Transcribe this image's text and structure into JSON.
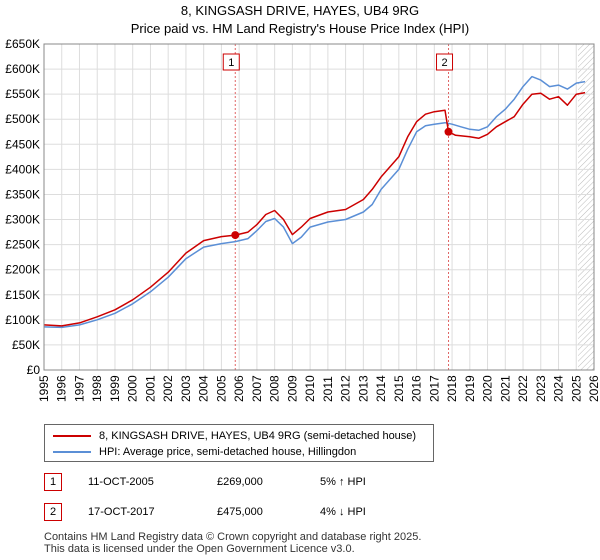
{
  "title": {
    "line1": "8, KINGSASH DRIVE, HAYES, UB4 9RG",
    "line2": "Price paid vs. HM Land Registry's House Price Index (HPI)"
  },
  "chart_data": {
    "type": "line",
    "title": "Price paid vs. HM Land Registry's House Price Index (HPI)",
    "xlabel": "",
    "ylabel": "",
    "xlim": [
      1995,
      2026
    ],
    "ylim": [
      0,
      650000
    ],
    "y_ticks": [
      0,
      50000,
      100000,
      150000,
      200000,
      250000,
      300000,
      350000,
      400000,
      450000,
      500000,
      550000,
      600000,
      650000
    ],
    "y_tick_labels": [
      "£0",
      "£50K",
      "£100K",
      "£150K",
      "£200K",
      "£250K",
      "£300K",
      "£350K",
      "£400K",
      "£450K",
      "£500K",
      "£550K",
      "£600K",
      "£650K"
    ],
    "x_ticks": [
      1995,
      1996,
      1997,
      1998,
      1999,
      2000,
      2001,
      2002,
      2003,
      2004,
      2005,
      2006,
      2007,
      2008,
      2009,
      2010,
      2011,
      2012,
      2013,
      2014,
      2015,
      2016,
      2017,
      2018,
      2019,
      2020,
      2021,
      2022,
      2023,
      2024,
      2025,
      2026
    ],
    "x_tick_labels": [
      "1995",
      "1996",
      "1997",
      "1998",
      "1999",
      "2000",
      "2001",
      "2002",
      "2003",
      "2004",
      "2005",
      "2006",
      "2007",
      "2008",
      "2009",
      "2010",
      "2011",
      "2012",
      "2013",
      "2014",
      "2015",
      "2016",
      "2017",
      "2018",
      "2019",
      "2020",
      "2021",
      "2022",
      "2023",
      "2024",
      "2025",
      "2026"
    ],
    "grid": true,
    "forecast_start": 2025.1,
    "series": [
      {
        "name": "8, KINGSASH DRIVE, HAYES, UB4 9RG (semi-detached house)",
        "color": "#cc0000",
        "points": [
          [
            1995.0,
            90000
          ],
          [
            1996.0,
            88000
          ],
          [
            1997.0,
            94000
          ],
          [
            1998.0,
            106000
          ],
          [
            1999.0,
            120000
          ],
          [
            2000.0,
            140000
          ],
          [
            2001.0,
            165000
          ],
          [
            2002.0,
            195000
          ],
          [
            2003.0,
            233000
          ],
          [
            2004.0,
            258000
          ],
          [
            2005.0,
            266000
          ],
          [
            2005.78,
            269000
          ],
          [
            2006.5,
            275000
          ],
          [
            2007.0,
            290000
          ],
          [
            2007.5,
            310000
          ],
          [
            2008.0,
            318000
          ],
          [
            2008.5,
            300000
          ],
          [
            2009.0,
            270000
          ],
          [
            2009.5,
            285000
          ],
          [
            2010.0,
            302000
          ],
          [
            2011.0,
            315000
          ],
          [
            2012.0,
            320000
          ],
          [
            2013.0,
            340000
          ],
          [
            2013.5,
            360000
          ],
          [
            2014.0,
            385000
          ],
          [
            2015.0,
            425000
          ],
          [
            2015.5,
            465000
          ],
          [
            2016.0,
            495000
          ],
          [
            2016.5,
            510000
          ],
          [
            2017.0,
            515000
          ],
          [
            2017.6,
            518000
          ],
          [
            2017.8,
            475000
          ],
          [
            2018.2,
            468000
          ],
          [
            2019.0,
            465000
          ],
          [
            2019.5,
            462000
          ],
          [
            2020.0,
            470000
          ],
          [
            2020.5,
            485000
          ],
          [
            2021.0,
            495000
          ],
          [
            2021.5,
            505000
          ],
          [
            2022.0,
            530000
          ],
          [
            2022.5,
            550000
          ],
          [
            2023.0,
            552000
          ],
          [
            2023.5,
            540000
          ],
          [
            2024.0,
            545000
          ],
          [
            2024.5,
            528000
          ],
          [
            2025.0,
            550000
          ],
          [
            2025.5,
            553000
          ]
        ]
      },
      {
        "name": "HPI: Average price, semi-detached house, Hillingdon",
        "color": "#5b8fd6",
        "points": [
          [
            1995.0,
            86000
          ],
          [
            1996.0,
            85000
          ],
          [
            1997.0,
            90000
          ],
          [
            1998.0,
            100000
          ],
          [
            1999.0,
            113000
          ],
          [
            2000.0,
            132000
          ],
          [
            2001.0,
            156000
          ],
          [
            2002.0,
            185000
          ],
          [
            2003.0,
            222000
          ],
          [
            2004.0,
            245000
          ],
          [
            2005.0,
            252000
          ],
          [
            2005.78,
            256000
          ],
          [
            2006.5,
            262000
          ],
          [
            2007.0,
            278000
          ],
          [
            2007.5,
            296000
          ],
          [
            2008.0,
            302000
          ],
          [
            2008.5,
            285000
          ],
          [
            2009.0,
            252000
          ],
          [
            2009.5,
            265000
          ],
          [
            2010.0,
            285000
          ],
          [
            2011.0,
            295000
          ],
          [
            2012.0,
            300000
          ],
          [
            2013.0,
            315000
          ],
          [
            2013.5,
            330000
          ],
          [
            2014.0,
            360000
          ],
          [
            2015.0,
            400000
          ],
          [
            2015.5,
            440000
          ],
          [
            2016.0,
            475000
          ],
          [
            2016.5,
            487000
          ],
          [
            2017.0,
            490000
          ],
          [
            2017.6,
            493000
          ],
          [
            2018.0,
            490000
          ],
          [
            2018.5,
            485000
          ],
          [
            2019.0,
            480000
          ],
          [
            2019.5,
            478000
          ],
          [
            2020.0,
            485000
          ],
          [
            2020.5,
            505000
          ],
          [
            2021.0,
            520000
          ],
          [
            2021.5,
            540000
          ],
          [
            2022.0,
            565000
          ],
          [
            2022.5,
            585000
          ],
          [
            2023.0,
            578000
          ],
          [
            2023.5,
            565000
          ],
          [
            2024.0,
            568000
          ],
          [
            2024.5,
            560000
          ],
          [
            2025.0,
            572000
          ],
          [
            2025.5,
            575000
          ]
        ]
      }
    ],
    "annotations": [
      {
        "label": "1",
        "x": 2005.78,
        "y": 269000
      },
      {
        "label": "2",
        "x": 2017.8,
        "y": 475000
      }
    ]
  },
  "legend": {
    "entries": [
      {
        "label": "8, KINGSASH DRIVE, HAYES, UB4 9RG (semi-detached house)",
        "color": "#cc0000"
      },
      {
        "label": "HPI: Average price, semi-detached house, Hillingdon",
        "color": "#5b8fd6"
      }
    ]
  },
  "transactions": [
    {
      "marker": "1",
      "date": "11-OCT-2005",
      "price": "£269,000",
      "hpi": "5% ↑ HPI"
    },
    {
      "marker": "2",
      "date": "17-OCT-2017",
      "price": "£475,000",
      "hpi": "4% ↓ HPI"
    }
  ],
  "footer": {
    "line1": "Contains HM Land Registry data © Crown copyright and database right 2025.",
    "line2": "This data is licensed under the Open Government Licence v3.0."
  }
}
